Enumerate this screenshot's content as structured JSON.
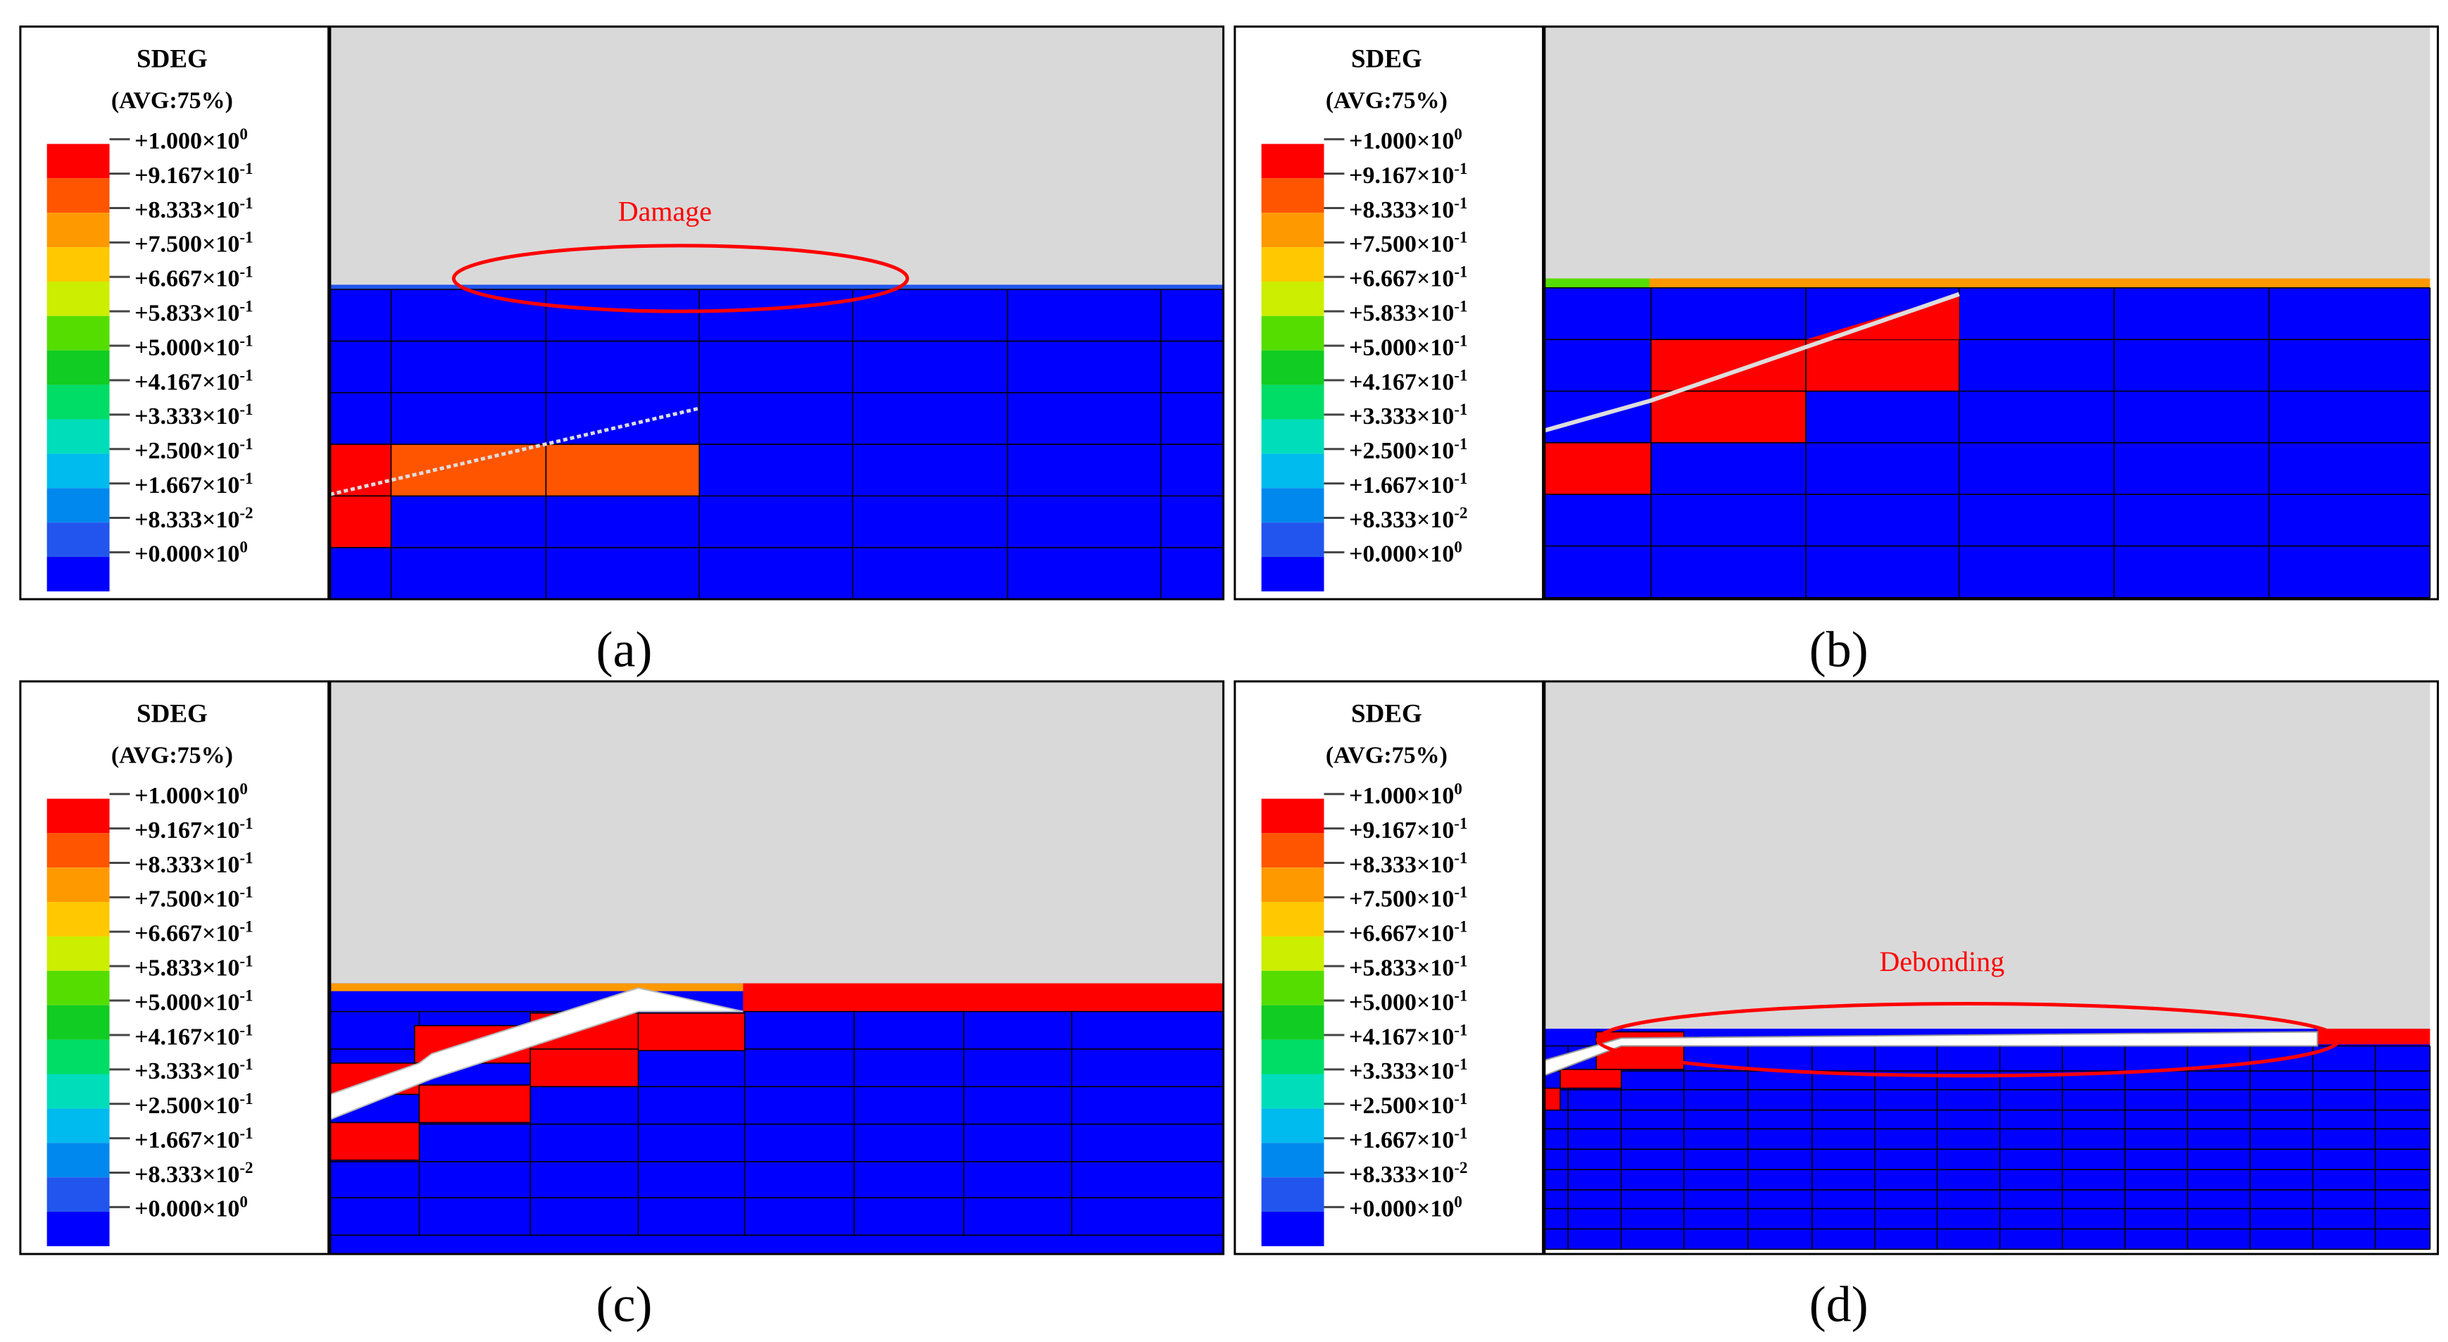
{
  "legend": {
    "title": "SDEG",
    "subtitle": "(AVG:75%)",
    "colors": [
      "#ff0000",
      "#ff5500",
      "#ff9900",
      "#ffc800",
      "#ccee00",
      "#55dd00",
      "#11cc22",
      "#00dd66",
      "#00ddbb",
      "#00bbee",
      "#0088ee",
      "#2255ee",
      "#0000ff"
    ],
    "labels": [
      {
        "m": "+1.000",
        "e": "0"
      },
      {
        "m": "+9.167",
        "e": "-1"
      },
      {
        "m": "+8.333",
        "e": "-1"
      },
      {
        "m": "+7.500",
        "e": "-1"
      },
      {
        "m": "+6.667",
        "e": "-1"
      },
      {
        "m": "+5.833",
        "e": "-1"
      },
      {
        "m": "+5.000",
        "e": "-1"
      },
      {
        "m": "+4.167",
        "e": "-1"
      },
      {
        "m": "+3.333",
        "e": "-1"
      },
      {
        "m": "+2.500",
        "e": "-1"
      },
      {
        "m": "+1.667",
        "e": "-1"
      },
      {
        "m": "+8.333",
        "e": "-2"
      },
      {
        "m": "+0.000",
        "e": "0"
      }
    ],
    "times": "×10"
  },
  "panels": [
    {
      "id": "a",
      "caption": "(a)",
      "annotation": "Damage"
    },
    {
      "id": "b",
      "caption": "(b)",
      "annotation": ""
    },
    {
      "id": "c",
      "caption": "(c)",
      "annotation": ""
    },
    {
      "id": "d",
      "caption": "(d)",
      "annotation": "Debonding"
    }
  ],
  "colors": {
    "background_gray": "#d9d9d9",
    "mesh_blue": "#0000ff",
    "damage_red": "#ff0000",
    "damage_orange": "#ff5500",
    "coating_orange": "#ff9900",
    "annotation_red": "#ff0000",
    "crack_white": "#ffffff"
  }
}
